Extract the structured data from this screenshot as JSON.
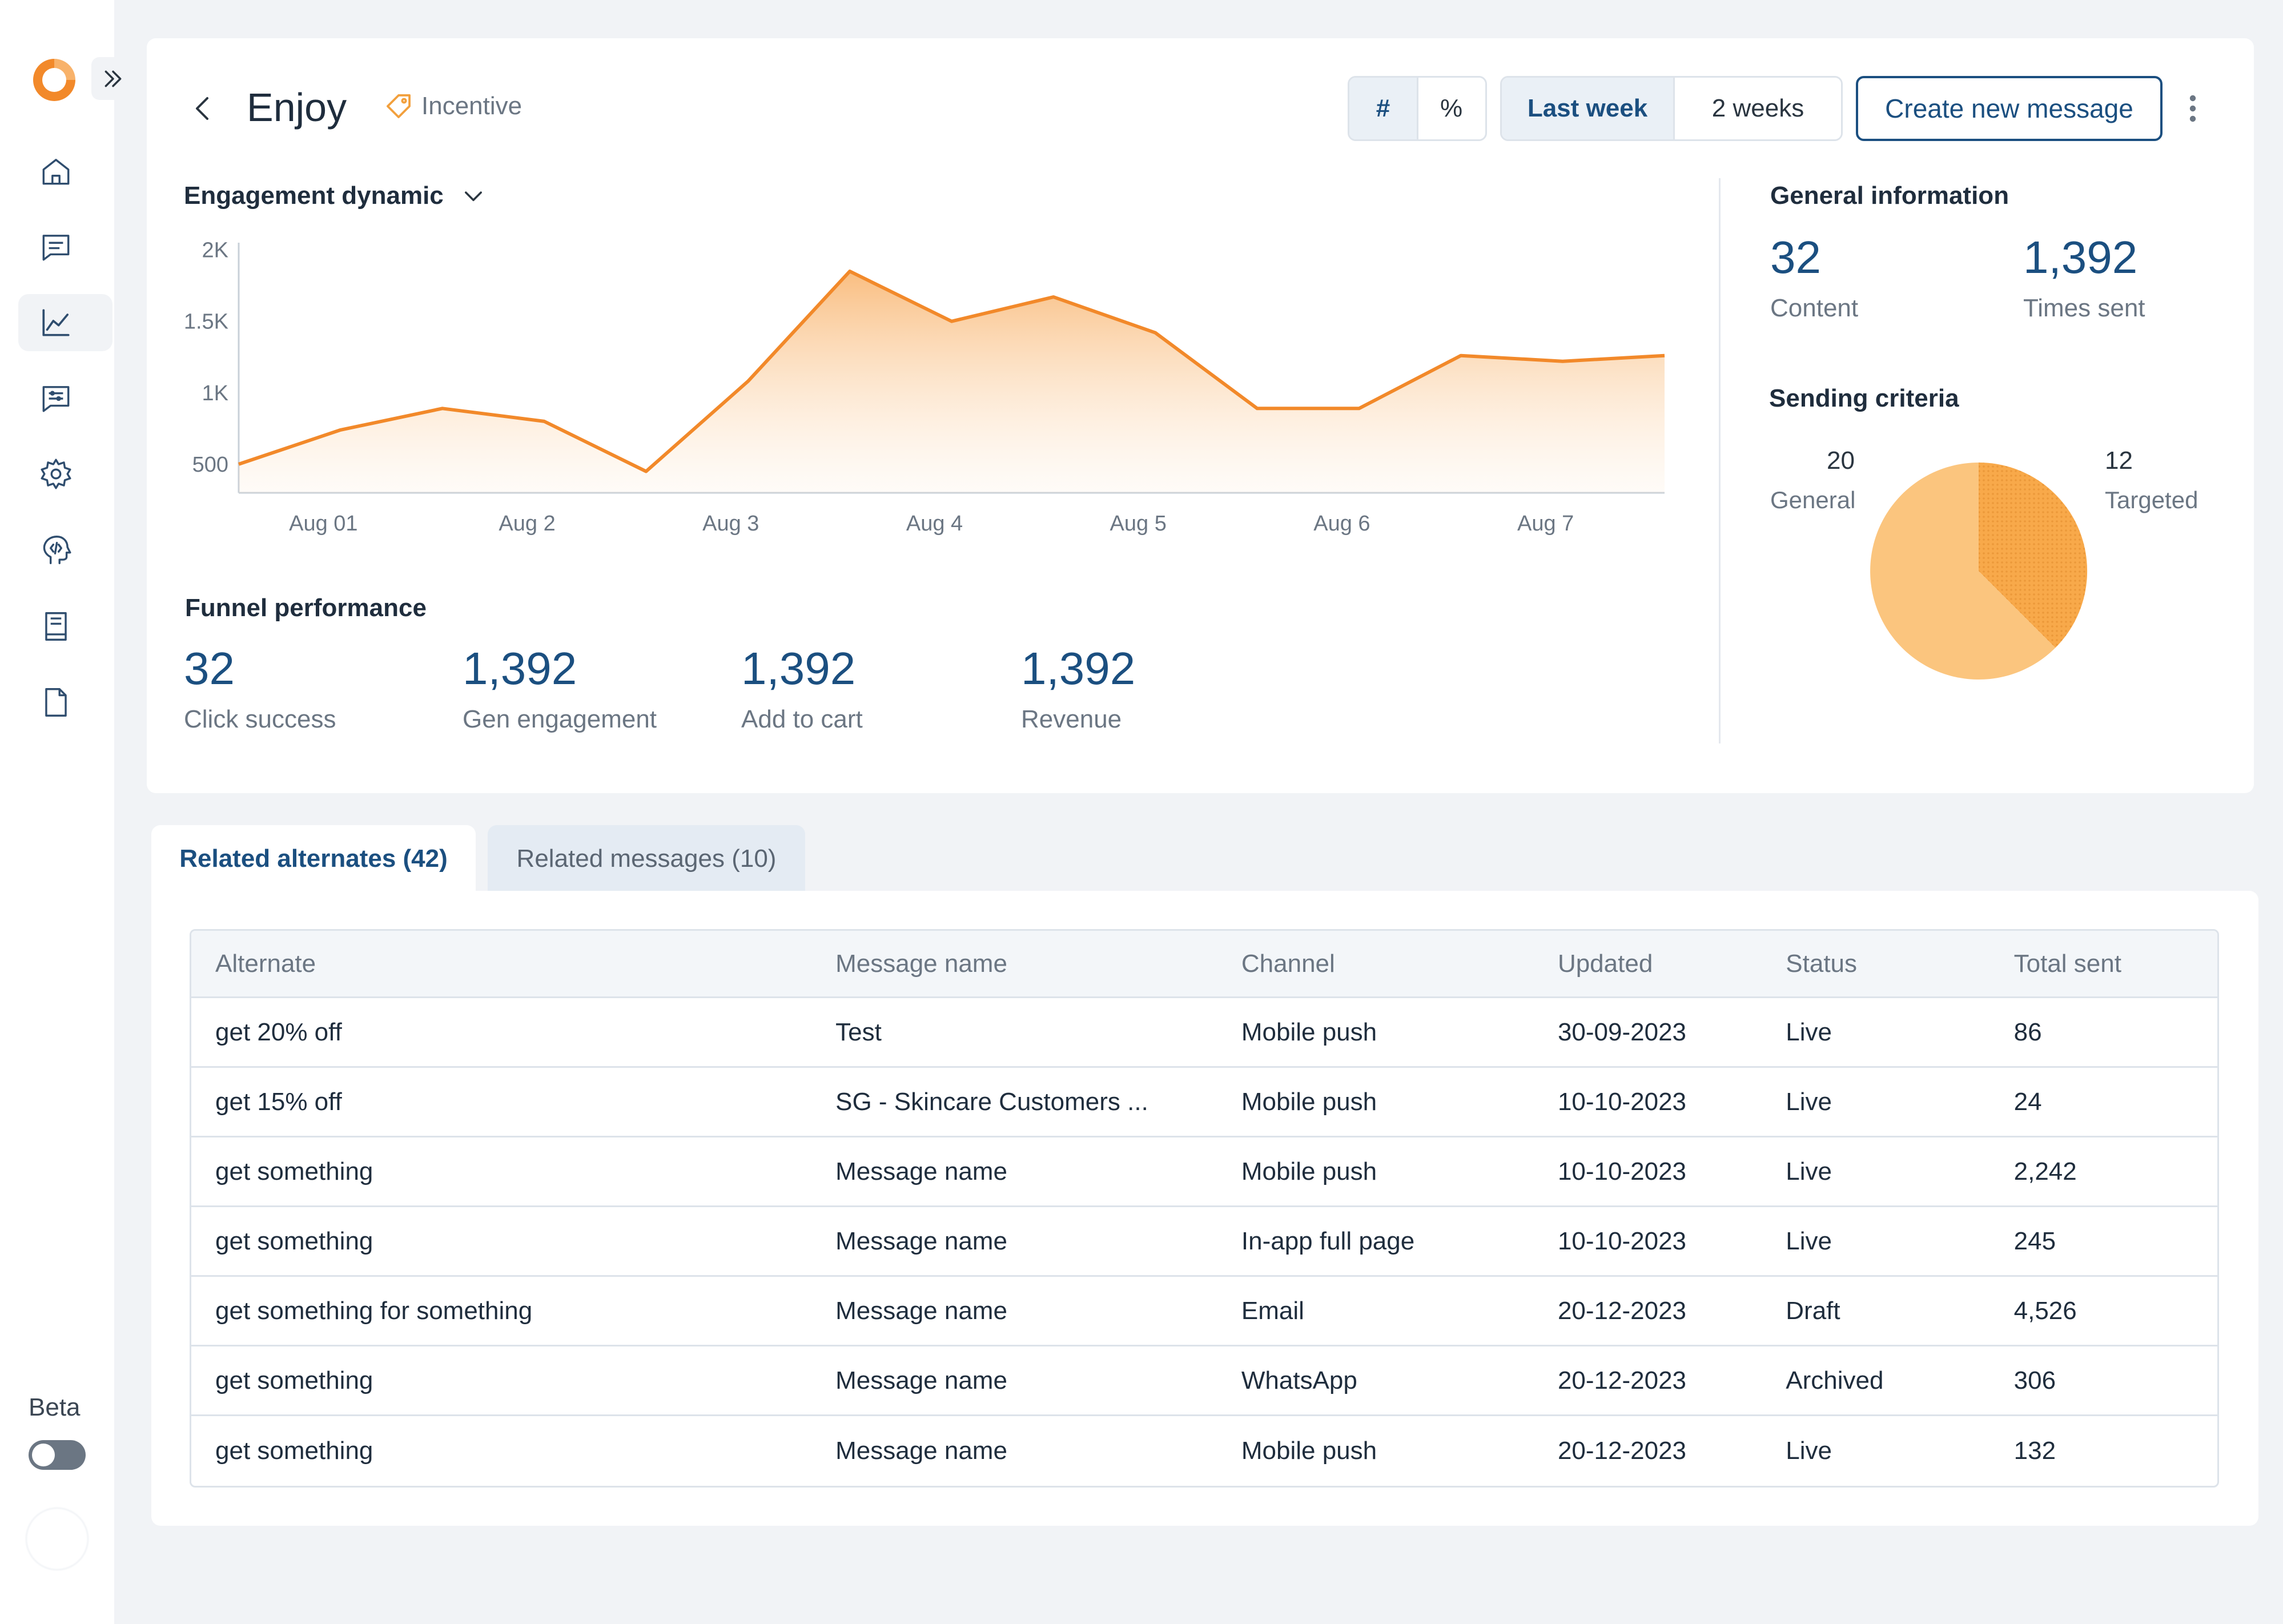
{
  "sidebar": {
    "beta_label": "Beta",
    "icons": [
      "home-icon",
      "messages-icon",
      "analytics-icon",
      "templates-icon",
      "settings-icon",
      "ai-head-icon",
      "book-icon",
      "document-icon"
    ],
    "active": "analytics-icon"
  },
  "header": {
    "title": "Enjoy",
    "tag": "Incentive",
    "mode_options": [
      "#",
      "%"
    ],
    "mode_selected": "#",
    "range_options": [
      "Last week",
      "2 weeks"
    ],
    "range_selected": "Last week",
    "create_button": "Create new message"
  },
  "engagement": {
    "title": "Engagement dynamic"
  },
  "chart_data": {
    "type": "area",
    "title": "Engagement dynamic",
    "x_ticks": [
      "Aug 01",
      "Aug 2",
      "Aug 3",
      "Aug 4",
      "Aug 5",
      "Aug 6",
      "Aug 7"
    ],
    "y_ticks": [
      "500",
      "1K",
      "1.5K",
      "2K"
    ],
    "y_tick_values": [
      500,
      1000,
      1500,
      2000
    ],
    "ylim": [
      300,
      2050
    ],
    "x": [
      0,
      0.5,
      1,
      1.5,
      2,
      2.5,
      3,
      3.5,
      4,
      4.5,
      5,
      5.5,
      6,
      6.5,
      7
    ],
    "values": [
      500,
      740,
      890,
      800,
      450,
      1080,
      1850,
      1500,
      1670,
      1420,
      890,
      890,
      1260,
      1220,
      1260
    ],
    "color": "#f2892a",
    "grid": false
  },
  "funnel": {
    "title": "Funnel performance",
    "metrics": [
      {
        "value": "32",
        "label": "Click success"
      },
      {
        "value": "1,392",
        "label": "Gen engagement"
      },
      {
        "value": "1,392",
        "label": "Add to cart"
      },
      {
        "value": "1,392",
        "label": "Revenue"
      }
    ]
  },
  "general": {
    "title": "General information",
    "content_value": "32",
    "content_label": "Content",
    "sent_value": "1,392",
    "sent_label": "Times sent"
  },
  "sending_criteria": {
    "title": "Sending criteria",
    "general_value": "20",
    "general_label": "General",
    "targeted_value": "12",
    "targeted_label": "Targeted",
    "general_color": "#fbc57e",
    "targeted_color": "#f8a94a"
  },
  "tabs": [
    {
      "label": "Related alternates (42)"
    },
    {
      "label": "Related messages (10)"
    }
  ],
  "table": {
    "headers": [
      "Alternate",
      "Message name",
      "Channel",
      "Updated",
      "Status",
      "Total sent"
    ],
    "rows": [
      [
        "get  20% off",
        "Test",
        "Mobile push",
        "30-09-2023",
        "Live",
        "86"
      ],
      [
        "get 15% off",
        "SG - Skincare Customers ...",
        "Mobile push",
        "10-10-2023",
        "Live",
        "24"
      ],
      [
        "get something",
        "Message name",
        "Mobile push",
        "10-10-2023",
        "Live",
        "2,242"
      ],
      [
        "get something",
        "Message name",
        "In-app full page",
        "10-10-2023",
        "Live",
        "245"
      ],
      [
        "get something for something",
        "Message name",
        "Email",
        "20-12-2023",
        "Draft",
        "4,526"
      ],
      [
        "get something",
        "Message name",
        "WhatsApp",
        "20-12-2023",
        "Archived",
        "306"
      ],
      [
        "get something",
        "Message name",
        "Mobile push",
        "20-12-2023",
        "Live",
        "132"
      ]
    ]
  }
}
